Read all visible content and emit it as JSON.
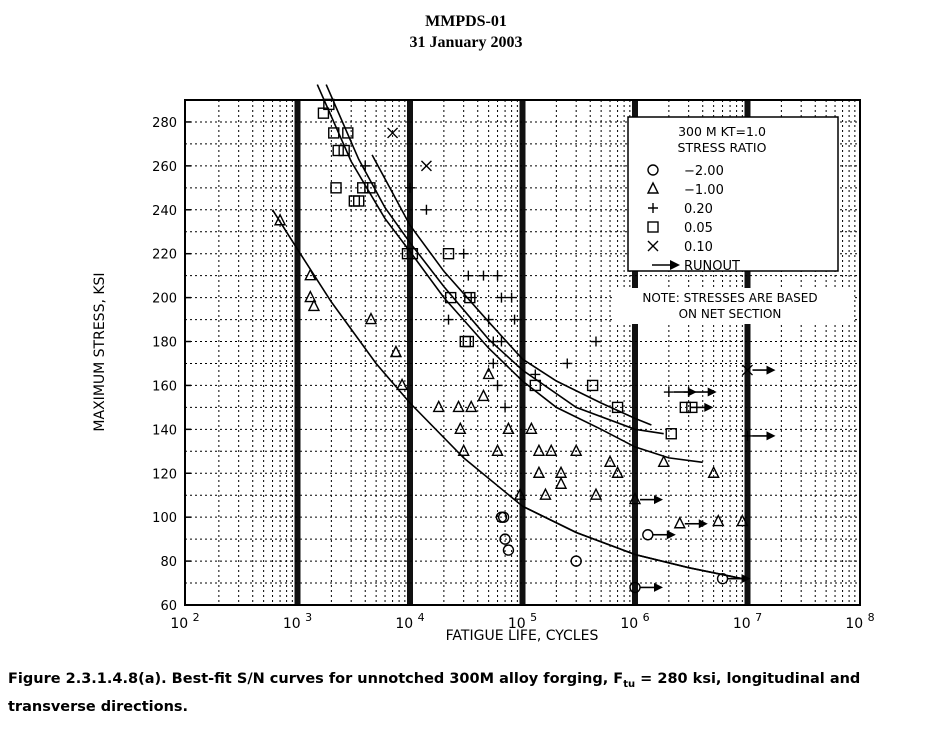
{
  "header": {
    "line1": "MMPDS-01",
    "line2": "31 January 2003"
  },
  "caption": {
    "part1": "Figure 2.3.1.4.8(a).  Best-fit S/N curves for unnotched 300M alloy forging, F",
    "sub": "tu",
    "part2": " = 280 ksi, longitudinal and transverse directions."
  },
  "chart_data": {
    "type": "scatter",
    "xlabel": "FATIGUE LIFE, CYCLES",
    "ylabel": "MAXIMUM STRESS, KSI",
    "xscale": "log",
    "xlim": [
      100,
      100000000
    ],
    "ylim": [
      60,
      290
    ],
    "x_ticks": [
      {
        "base": "10",
        "exp": "2"
      },
      {
        "base": "10",
        "exp": "3"
      },
      {
        "base": "10",
        "exp": "4"
      },
      {
        "base": "10",
        "exp": "5"
      },
      {
        "base": "10",
        "exp": "6"
      },
      {
        "base": "10",
        "exp": "7"
      },
      {
        "base": "10",
        "exp": "8"
      }
    ],
    "y_ticks": [
      60,
      80,
      100,
      120,
      140,
      160,
      180,
      200,
      220,
      240,
      260,
      280
    ],
    "grid": true,
    "legend_position": "top-right",
    "legend": {
      "title1": "300 M  KT=1.0",
      "title2": "STRESS RATIO",
      "entries": [
        {
          "marker": "circle",
          "label": "−2.00"
        },
        {
          "marker": "triangle",
          "label": "−1.00"
        },
        {
          "marker": "plus",
          "label": "0.20"
        },
        {
          "marker": "square",
          "label": "0.05"
        },
        {
          "marker": "cross",
          "label": "0.10"
        },
        {
          "marker": "runout",
          "label": "RUNOUT"
        }
      ]
    },
    "note": {
      "line1": "NOTE: STRESSES ARE BASED",
      "line2": "ON NET SECTION"
    },
    "series": [
      {
        "marker": "circle",
        "points": [
          [
            65000,
            100
          ],
          [
            68000,
            100
          ],
          [
            70000,
            90
          ],
          [
            75000,
            85
          ],
          [
            300000,
            80
          ],
          [
            1300000,
            92
          ],
          [
            1000000,
            68
          ],
          [
            6000000,
            72
          ]
        ],
        "runouts": [
          [
            1300000,
            92
          ],
          [
            1000000,
            68
          ],
          [
            6000000,
            72
          ]
        ]
      },
      {
        "marker": "triangle",
        "points": [
          [
            700,
            235
          ],
          [
            1300,
            210
          ],
          [
            1300,
            200
          ],
          [
            1400,
            196
          ],
          [
            4500,
            190
          ],
          [
            7500,
            175
          ],
          [
            8500,
            160
          ],
          [
            18000,
            150
          ],
          [
            27000,
            150
          ],
          [
            28000,
            140
          ],
          [
            30000,
            130
          ],
          [
            35000,
            150
          ],
          [
            45000,
            155
          ],
          [
            50000,
            165
          ],
          [
            60000,
            130
          ],
          [
            75000,
            140
          ],
          [
            95000,
            110
          ],
          [
            120000,
            140
          ],
          [
            140000,
            130
          ],
          [
            140000,
            120
          ],
          [
            160000,
            110
          ],
          [
            180000,
            130
          ],
          [
            220000,
            115
          ],
          [
            220000,
            120
          ],
          [
            300000,
            130
          ],
          [
            450000,
            110
          ],
          [
            600000,
            125
          ],
          [
            700000,
            120
          ],
          [
            1000000,
            108
          ],
          [
            1800000,
            125
          ],
          [
            2500000,
            97
          ],
          [
            5000000,
            120
          ],
          [
            5500000,
            98
          ],
          [
            9000000,
            98
          ]
        ],
        "runouts": [
          [
            1000000,
            108
          ],
          [
            2500000,
            97
          ]
        ]
      },
      {
        "marker": "plus",
        "points": [
          [
            4000,
            260
          ],
          [
            10000,
            250
          ],
          [
            14000,
            240
          ],
          [
            22000,
            190
          ],
          [
            30000,
            220
          ],
          [
            33000,
            210
          ],
          [
            35000,
            200
          ],
          [
            45000,
            210
          ],
          [
            50000,
            190
          ],
          [
            55000,
            170
          ],
          [
            55000,
            180
          ],
          [
            60000,
            160
          ],
          [
            60000,
            210
          ],
          [
            65000,
            200
          ],
          [
            65000,
            180
          ],
          [
            70000,
            150
          ],
          [
            80000,
            200
          ],
          [
            85000,
            190
          ],
          [
            130000,
            165
          ],
          [
            250000,
            170
          ],
          [
            450000,
            180
          ],
          [
            2000000,
            157
          ],
          [
            3000000,
            157
          ],
          [
            10000000,
            137
          ]
        ],
        "runouts": [
          [
            2000000,
            157
          ],
          [
            3000000,
            157
          ],
          [
            10000000,
            137
          ]
        ]
      },
      {
        "marker": "square",
        "points": [
          [
            1700,
            284
          ],
          [
            1900,
            288
          ],
          [
            2100,
            275
          ],
          [
            2200,
            250
          ],
          [
            2300,
            267
          ],
          [
            2600,
            267
          ],
          [
            2800,
            275
          ],
          [
            3200,
            244
          ],
          [
            3500,
            244
          ],
          [
            3800,
            250
          ],
          [
            4400,
            250
          ],
          [
            9500,
            220
          ],
          [
            10500,
            220
          ],
          [
            22000,
            220
          ],
          [
            23000,
            200
          ],
          [
            31000,
            180
          ],
          [
            33000,
            180
          ],
          [
            34000,
            200
          ],
          [
            130000,
            160
          ],
          [
            420000,
            160
          ],
          [
            700000,
            150
          ],
          [
            2100000,
            138
          ],
          [
            2800000,
            150
          ],
          [
            3200000,
            150
          ]
        ],
        "runouts": [
          [
            2800000,
            150
          ]
        ]
      },
      {
        "marker": "cross",
        "points": [
          [
            7000,
            275
          ],
          [
            14000,
            260
          ],
          [
            10000000,
            167
          ]
        ],
        "runouts": [
          [
            10000000,
            167
          ]
        ]
      }
    ],
    "curves": [
      {
        "points": [
          [
            600,
            240
          ],
          [
            1000,
            222
          ],
          [
            2000,
            198
          ],
          [
            5000,
            170
          ],
          [
            10000,
            152
          ],
          [
            30000,
            127
          ],
          [
            100000,
            105
          ],
          [
            300000,
            93
          ],
          [
            1000000,
            83
          ],
          [
            3000000,
            77
          ],
          [
            9000000,
            72
          ]
        ]
      },
      {
        "points": [
          [
            1500,
            297
          ],
          [
            3000,
            262
          ],
          [
            6000,
            236
          ],
          [
            10000,
            221
          ],
          [
            20000,
            200
          ],
          [
            50000,
            177
          ],
          [
            100000,
            162
          ],
          [
            200000,
            150
          ],
          [
            500000,
            140
          ],
          [
            1000000,
            132
          ],
          [
            2000000,
            127
          ],
          [
            4000000,
            125
          ]
        ]
      },
      {
        "points": [
          [
            1800,
            297
          ],
          [
            3500,
            263
          ],
          [
            6000,
            241
          ],
          [
            10000,
            225
          ],
          [
            20000,
            205
          ],
          [
            50000,
            181
          ],
          [
            100000,
            167
          ],
          [
            300000,
            150
          ],
          [
            1000000,
            140
          ],
          [
            1800000,
            138
          ]
        ]
      },
      {
        "points": [
          [
            4600,
            265
          ],
          [
            10000,
            233
          ],
          [
            20000,
            212
          ],
          [
            50000,
            189
          ],
          [
            100000,
            172
          ],
          [
            200000,
            162
          ],
          [
            500000,
            152
          ],
          [
            1000000,
            145
          ],
          [
            1400000,
            142
          ]
        ]
      },
      {
        "points": [
          [
            100000,
            105
          ],
          [
            300000,
            93
          ],
          [
            1000000,
            83
          ],
          [
            3000000,
            77
          ],
          [
            9000000,
            72
          ]
        ]
      }
    ]
  }
}
